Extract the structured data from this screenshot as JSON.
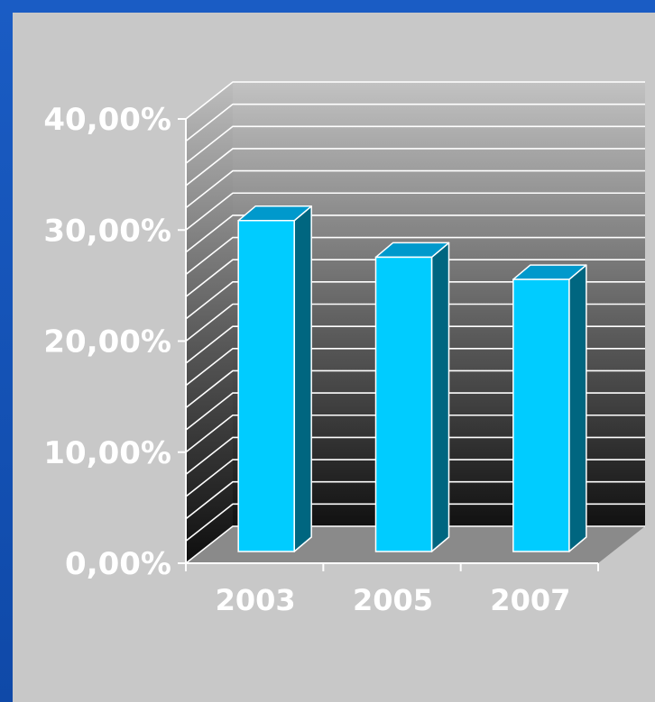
{
  "chart_data": {
    "type": "bar",
    "categories": [
      "2003",
      "2005",
      "2007"
    ],
    "values": [
      31.5,
      28.2,
      26.2
    ],
    "ylim": [
      0,
      40
    ],
    "yticks": [
      "0,00%",
      "10,00%",
      "20,00%",
      "30,00%",
      "40,00%"
    ],
    "grid": true,
    "legend": "none",
    "colors": {
      "bar_front": "#00ccff",
      "bar_top": "#0099cc",
      "bar_side": "#006680",
      "axis": "#ffffff"
    }
  }
}
